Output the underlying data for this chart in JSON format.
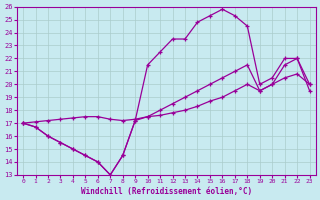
{
  "title": "",
  "xlabel": "Windchill (Refroidissement éolien,°C)",
  "ylabel": "",
  "bg_color": "#c8eaf0",
  "line_color": "#990099",
  "grid_color": "#aacccc",
  "xlim": [
    -0.5,
    23.5
  ],
  "ylim": [
    13,
    26
  ],
  "xticks": [
    0,
    1,
    2,
    3,
    4,
    5,
    6,
    7,
    8,
    9,
    10,
    11,
    12,
    13,
    14,
    15,
    16,
    17,
    18,
    19,
    20,
    21,
    22,
    23
  ],
  "yticks": [
    13,
    14,
    15,
    16,
    17,
    18,
    19,
    20,
    21,
    22,
    23,
    24,
    25,
    26
  ],
  "line1_x": [
    0,
    1,
    2,
    3,
    4,
    5,
    6,
    7,
    8,
    9,
    10,
    11,
    12,
    13,
    14,
    15,
    16,
    17,
    18,
    19,
    20,
    21,
    22,
    23
  ],
  "line1_y": [
    17.0,
    16.7,
    16.0,
    15.5,
    15.0,
    14.5,
    14.0,
    13.0,
    14.5,
    17.2,
    17.5,
    18.0,
    18.5,
    19.0,
    19.5,
    20.0,
    20.5,
    21.0,
    21.5,
    19.5,
    20.0,
    21.5,
    22.0,
    19.5
  ],
  "line2_x": [
    0,
    1,
    2,
    3,
    4,
    5,
    6,
    7,
    8,
    9,
    10,
    11,
    12,
    13,
    14,
    15,
    16,
    17,
    18,
    19,
    20,
    21,
    22,
    23
  ],
  "line2_y": [
    17.0,
    16.7,
    16.0,
    15.5,
    15.0,
    14.5,
    14.0,
    13.0,
    14.5,
    17.2,
    21.5,
    22.5,
    23.5,
    23.5,
    24.8,
    25.3,
    25.8,
    25.3,
    24.5,
    20.0,
    20.5,
    22.0,
    22.0,
    20.0
  ],
  "line3_x": [
    0,
    1,
    2,
    3,
    4,
    5,
    6,
    7,
    8,
    9,
    10,
    11,
    12,
    13,
    14,
    15,
    16,
    17,
    18,
    19,
    20,
    21,
    22,
    23
  ],
  "line3_y": [
    17.0,
    17.1,
    17.2,
    17.3,
    17.4,
    17.5,
    17.5,
    17.3,
    17.2,
    17.3,
    17.5,
    17.6,
    17.8,
    18.0,
    18.3,
    18.7,
    19.0,
    19.5,
    20.0,
    19.5,
    20.0,
    20.5,
    20.8,
    20.0
  ]
}
